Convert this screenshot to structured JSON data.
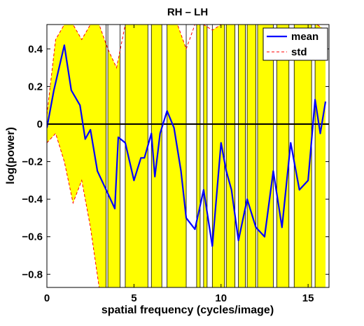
{
  "chart_data": {
    "type": "line",
    "title": "RH – LH",
    "xlabel": "spatial frequency (cycles/image)",
    "ylabel": "log(power)",
    "xlim": [
      0,
      16.2
    ],
    "ylim": [
      -0.87,
      0.53
    ],
    "xticks": [
      0,
      5,
      10,
      15
    ],
    "yticks": [
      -0.8,
      -0.6,
      -0.4,
      -0.2,
      0,
      0.2,
      0.4
    ],
    "ytick_labels": [
      "−0.8",
      "−0.6",
      "−0.4",
      "−0.2",
      "0",
      "0.2",
      "0.4"
    ],
    "xtick_labels": [
      "0",
      "5",
      "10",
      "15"
    ],
    "grid": false,
    "legend_position": "top-right",
    "reference_line": {
      "y": 0,
      "color": "#000000"
    },
    "series": [
      {
        "name": "mean",
        "color": "#0000ff",
        "style": "solid",
        "x": [
          0,
          0.4,
          1.0,
          1.4,
          1.9,
          2.2,
          2.5,
          2.9,
          3.4,
          3.9,
          4.1,
          4.5,
          4.8,
          5.0,
          5.4,
          5.6,
          6.0,
          6.2,
          6.5,
          6.9,
          7.3,
          7.7,
          8.0,
          8.5,
          9.0,
          9.5,
          10.0,
          10.3,
          10.6,
          11.0,
          11.5,
          12.0,
          12.5,
          13.0,
          13.5,
          14.0,
          14.5,
          15.0,
          15.4,
          15.7,
          16.0
        ],
        "y": [
          -0.02,
          0.18,
          0.42,
          0.18,
          0.1,
          -0.08,
          -0.03,
          -0.25,
          -0.35,
          -0.45,
          -0.07,
          -0.1,
          -0.22,
          -0.3,
          -0.18,
          -0.18,
          -0.05,
          -0.28,
          -0.05,
          0.07,
          -0.02,
          -0.25,
          -0.5,
          -0.56,
          -0.35,
          -0.65,
          -0.1,
          -0.25,
          -0.35,
          -0.62,
          -0.4,
          -0.55,
          -0.6,
          -0.25,
          -0.55,
          -0.1,
          -0.35,
          -0.3,
          0.13,
          -0.05,
          0.12
        ]
      },
      {
        "name": "std",
        "color": "#ff0000",
        "style": "dashed",
        "upper_x": [
          0,
          0.5,
          1.0,
          1.5,
          2.0,
          2.5,
          3.0,
          3.5,
          4.0,
          4.5,
          5.0,
          5.5,
          6.0,
          6.5,
          7.0,
          7.5,
          8.0,
          8.5,
          9.0,
          9.5,
          10.0,
          10.5,
          11.0,
          11.5,
          12.0,
          12.5,
          13.0,
          13.5,
          14.0,
          14.5,
          15.0,
          15.5,
          16.0
        ],
        "upper_y": [
          0.05,
          0.45,
          0.53,
          0.53,
          0.45,
          0.53,
          0.53,
          0.4,
          0.3,
          0.53,
          0.53,
          0.53,
          0.53,
          0.53,
          0.53,
          0.53,
          0.4,
          0.53,
          0.53,
          0.5,
          0.53,
          0.53,
          0.53,
          0.53,
          0.53,
          0.53,
          0.53,
          0.53,
          0.53,
          0.53,
          0.53,
          0.53,
          0.5
        ],
        "lower_x": [
          0,
          0.5,
          1.0,
          1.5,
          2.0,
          2.5,
          3.0,
          3.5,
          4.0,
          4.5,
          5.0,
          5.5,
          6.0,
          6.5,
          7.0,
          7.5,
          8.0,
          8.5,
          9.0,
          9.5,
          10.0,
          10.5,
          11.0,
          11.5,
          12.0,
          12.5,
          13.0,
          13.5,
          14.0,
          14.5,
          15.0,
          15.5,
          16.0
        ],
        "lower_y": [
          -0.1,
          -0.05,
          -0.2,
          -0.42,
          -0.3,
          -0.55,
          -0.87,
          -0.87,
          -0.87,
          -0.87,
          -0.87,
          -0.87,
          -0.87,
          -0.87,
          -0.87,
          -0.87,
          -0.87,
          -0.87,
          -0.87,
          -0.87,
          -0.87,
          -0.87,
          -0.87,
          -0.87,
          -0.87,
          -0.87,
          -0.87,
          -0.87,
          -0.87,
          -0.87,
          -0.87,
          -0.87,
          -0.87
        ]
      }
    ],
    "band_color": "#ffff00",
    "band_x": [
      0,
      0.5,
      1.0,
      1.5,
      2.0,
      2.5,
      3.0,
      3.5,
      4.0,
      4.5,
      5.0,
      5.5,
      6.0,
      6.5,
      7.0,
      7.5,
      8.0,
      8.5,
      9.0,
      9.5,
      10.0,
      10.5,
      11.0,
      11.5,
      12.0,
      12.5,
      13.0,
      13.5,
      14.0,
      14.5,
      15.0,
      15.5,
      16.0
    ],
    "band_upper": [
      0.05,
      0.45,
      0.53,
      0.53,
      0.45,
      0.53,
      0.53,
      0.4,
      0.3,
      0.53,
      0.53,
      0.53,
      0.53,
      0.53,
      0.53,
      0.53,
      0.4,
      0.53,
      0.53,
      0.5,
      0.53,
      0.53,
      0.53,
      0.53,
      0.53,
      0.53,
      0.53,
      0.53,
      0.53,
      0.53,
      0.53,
      0.53,
      0.5
    ],
    "band_lower": [
      -0.1,
      -0.05,
      -0.2,
      -0.42,
      -0.3,
      -0.55,
      -0.87,
      -0.87,
      -0.87,
      -0.87,
      -0.87,
      -0.87,
      -0.87,
      -0.87,
      -0.87,
      -0.87,
      -0.87,
      -0.87,
      -0.87,
      -0.87,
      -0.87,
      -0.87,
      -0.87,
      -0.87,
      -0.87,
      -0.87,
      -0.87,
      -0.87,
      -0.87,
      -0.87,
      -0.87,
      -0.87,
      -0.87
    ],
    "band_segments": [
      [
        3.4,
        3.5
      ],
      [
        4.2,
        4.5
      ],
      [
        5.8,
        6.0
      ],
      [
        6.6,
        6.9
      ],
      [
        8.0,
        8.6
      ],
      [
        8.8,
        9.0
      ],
      [
        9.2,
        9.5
      ],
      [
        10.2,
        10.3
      ],
      [
        10.8,
        11.0
      ],
      [
        11.4,
        11.5
      ],
      [
        12.0,
        12.1
      ],
      [
        13.0,
        13.2
      ],
      [
        13.9,
        14.2
      ],
      [
        15.2,
        15.4
      ]
    ]
  }
}
